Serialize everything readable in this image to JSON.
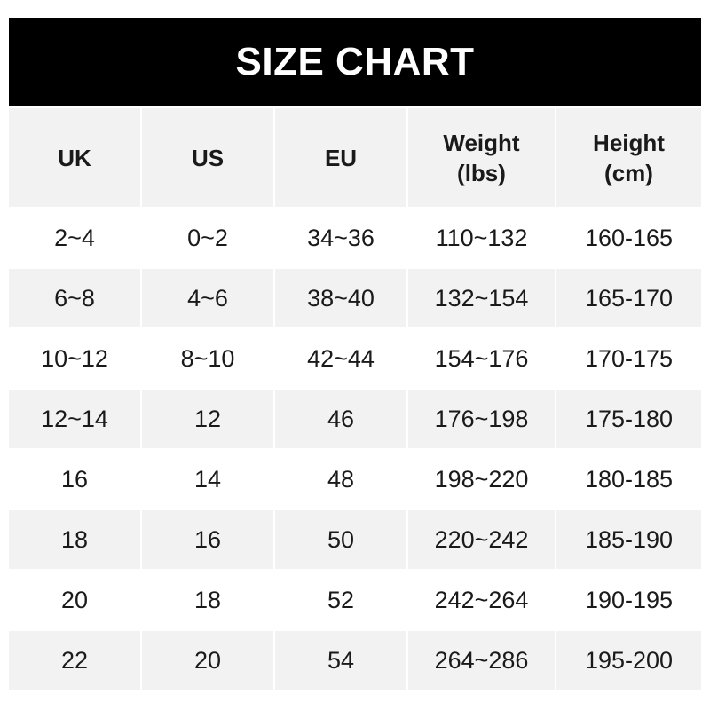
{
  "title": "SIZE CHART",
  "columns": [
    "UK",
    "US",
    "EU",
    "Weight\n(lbs)",
    "Height\n(cm)"
  ],
  "rows": [
    [
      "2~4",
      "0~2",
      "34~36",
      "110~132",
      "160-165"
    ],
    [
      "6~8",
      "4~6",
      "38~40",
      "132~154",
      "165-170"
    ],
    [
      "10~12",
      "8~10",
      "42~44",
      "154~176",
      "170-175"
    ],
    [
      "12~14",
      "12",
      "46",
      "176~198",
      "175-180"
    ],
    [
      "16",
      "14",
      "48",
      "198~220",
      "180-185"
    ],
    [
      "18",
      "16",
      "50",
      "220~242",
      "185-190"
    ],
    [
      "20",
      "18",
      "52",
      "242~264",
      "190-195"
    ],
    [
      "22",
      "20",
      "54",
      "264~286",
      "195-200"
    ]
  ],
  "colors": {
    "title_bg": "#000000",
    "title_text": "#ffffff",
    "stripe": "#f2f2f2"
  }
}
